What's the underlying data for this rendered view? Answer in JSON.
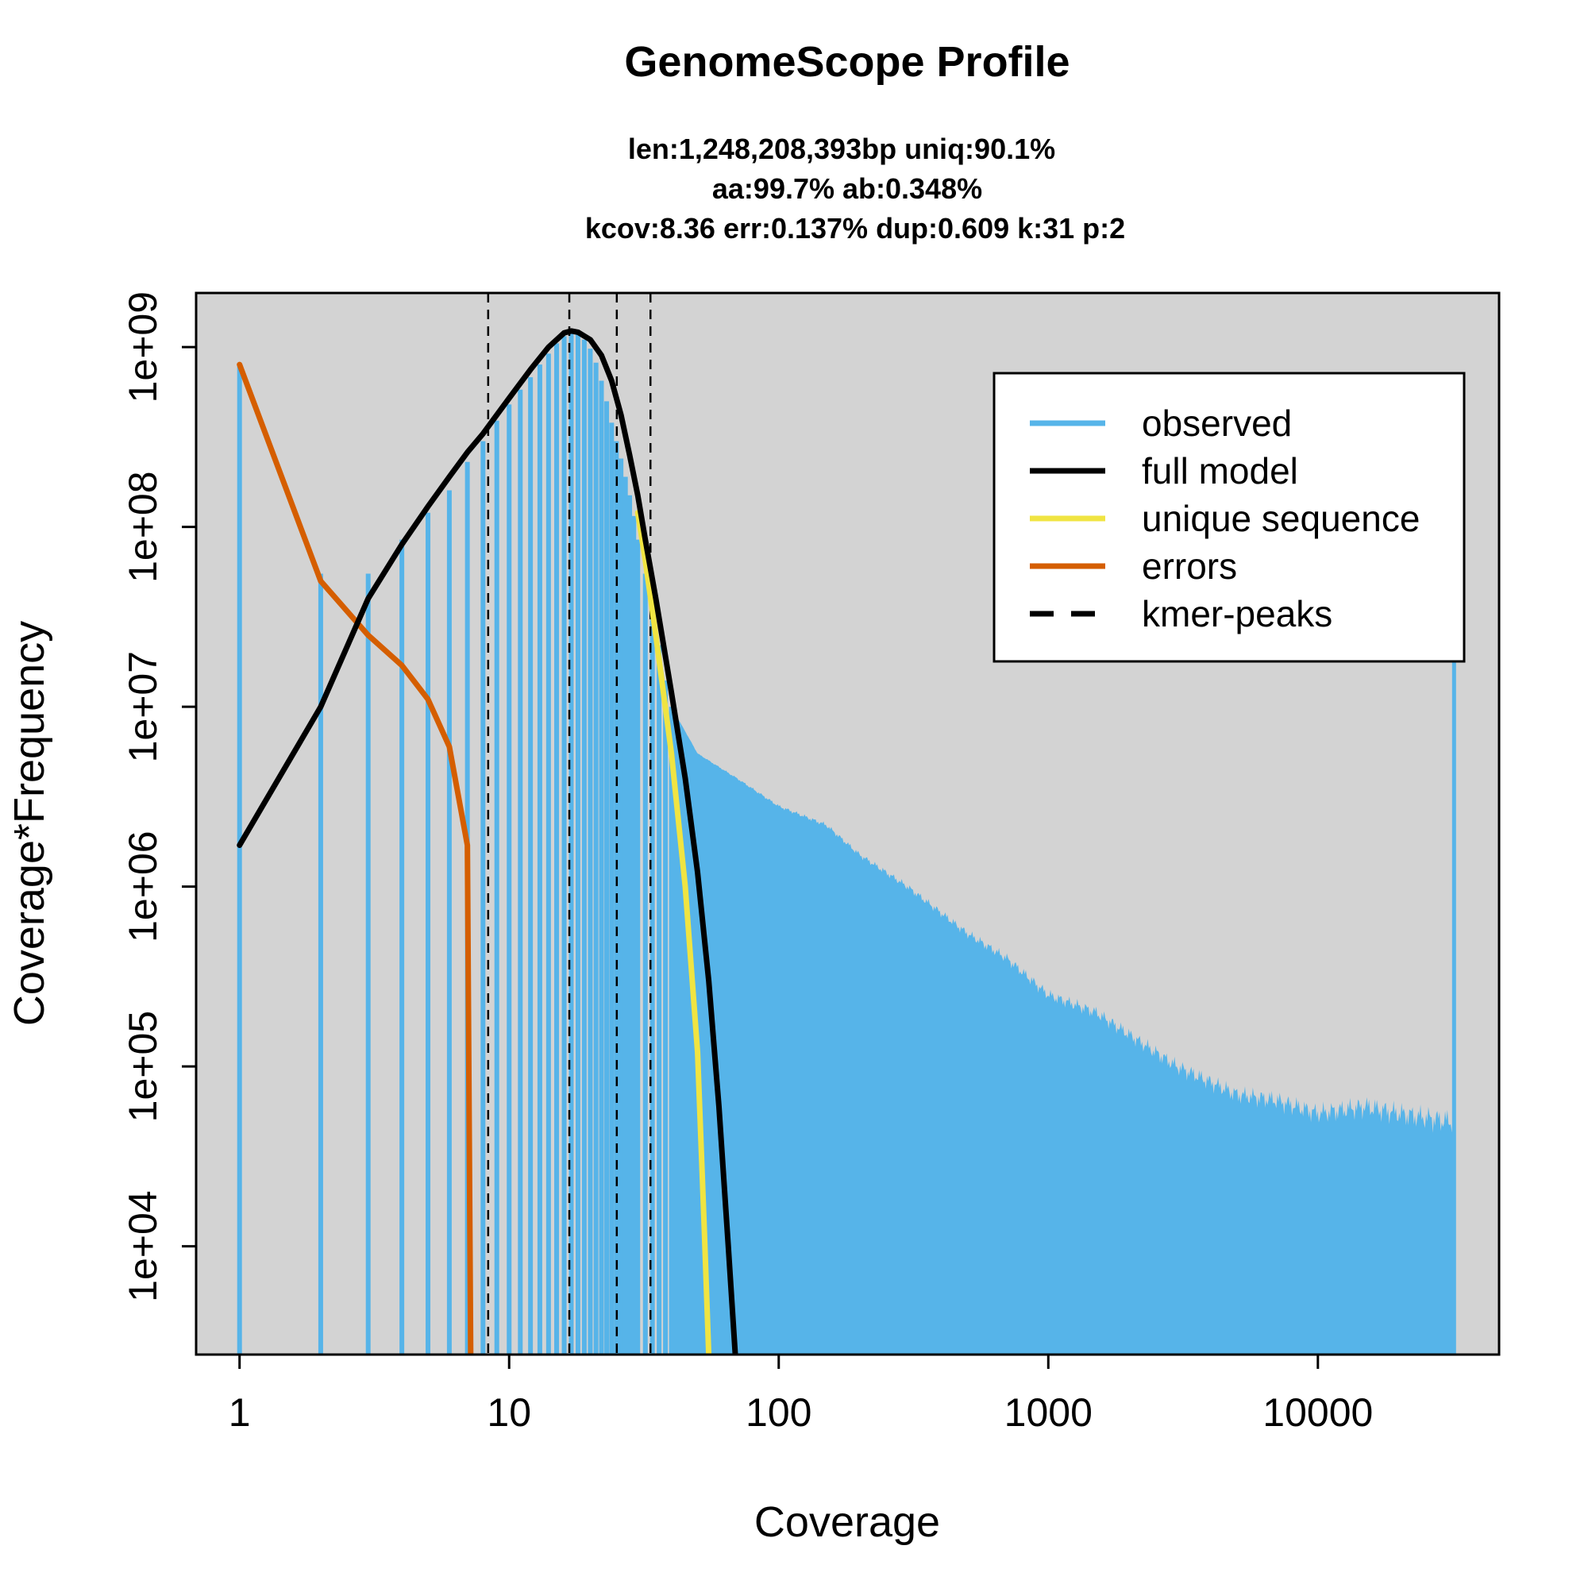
{
  "chart_data": {
    "type": "bar",
    "title": "GenomeScope Profile",
    "subtitle_lines": [
      "len:1,248,208,393bp uniq:90.1%",
      "aa:99.7% ab:0.348%",
      "kcov:8.36 err:0.137%  dup:0.609  k:31 p:2"
    ],
    "xlabel": "Coverage",
    "ylabel": "Coverage*Frequency",
    "x_scale": "log",
    "y_scale": "log",
    "xlim": [
      0.69,
      47000
    ],
    "ylim": [
      2500,
      2000000000
    ],
    "x_ticks": [
      {
        "value": 1,
        "label": "1"
      },
      {
        "value": 10,
        "label": "10"
      },
      {
        "value": 100,
        "label": "100"
      },
      {
        "value": 1000,
        "label": "1000"
      },
      {
        "value": 10000,
        "label": "10000"
      }
    ],
    "y_ticks": [
      {
        "value": 10000,
        "label": "1e+04"
      },
      {
        "value": 100000,
        "label": "1e+05"
      },
      {
        "value": 1000000,
        "label": "1e+06"
      },
      {
        "value": 10000000,
        "label": "1e+07"
      },
      {
        "value": 100000000,
        "label": "1e+08"
      },
      {
        "value": 1000000000,
        "label": "1e+09"
      }
    ],
    "plot_background": "#d3d3d3",
    "legend": {
      "position": "top-right",
      "entries": [
        {
          "label": "observed",
          "color": "#56b4e9",
          "style": "solid"
        },
        {
          "label": "full model",
          "color": "#000000",
          "style": "solid"
        },
        {
          "label": "unique sequence",
          "color": "#f0e442",
          "style": "solid"
        },
        {
          "label": "errors",
          "color": "#d55e00",
          "style": "solid"
        },
        {
          "label": "kmer-peaks",
          "color": "#000000",
          "style": "dashed"
        }
      ]
    },
    "observed": {
      "name": "observed",
      "color": "#56b4e9",
      "explicit": [
        [
          1,
          800000000
        ],
        [
          2,
          55000000
        ],
        [
          3,
          55000000
        ],
        [
          4,
          85000000
        ],
        [
          5,
          120000000
        ],
        [
          6,
          160000000
        ],
        [
          7,
          230000000
        ],
        [
          8,
          300000000
        ],
        [
          9,
          390000000
        ],
        [
          10,
          480000000
        ],
        [
          11,
          580000000
        ],
        [
          12,
          680000000
        ],
        [
          13,
          800000000
        ],
        [
          14,
          920000000
        ],
        [
          15,
          1050000000
        ],
        [
          16,
          1150000000
        ],
        [
          17,
          1200000000
        ],
        [
          18,
          1180000000
        ],
        [
          19,
          1100000000
        ],
        [
          20,
          980000000
        ],
        [
          21,
          820000000
        ],
        [
          22,
          650000000
        ],
        [
          23,
          500000000
        ],
        [
          24,
          380000000
        ],
        [
          25,
          300000000
        ],
        [
          26,
          240000000
        ],
        [
          27,
          190000000
        ],
        [
          28,
          150000000
        ],
        [
          29,
          115000000
        ],
        [
          30,
          85000000
        ],
        [
          32,
          55000000
        ],
        [
          34,
          35000000
        ],
        [
          36,
          22000000
        ],
        [
          38,
          14000000
        ],
        [
          40,
          10000000
        ]
      ],
      "tail_anchors": [
        [
          40,
          10000000
        ],
        [
          50,
          5500000
        ],
        [
          70,
          4000000
        ],
        [
          100,
          2800000
        ],
        [
          150,
          2200000
        ],
        [
          200,
          1500000
        ],
        [
          300,
          1000000
        ],
        [
          500,
          550000
        ],
        [
          700,
          400000
        ],
        [
          1000,
          250000
        ],
        [
          1500,
          200000
        ],
        [
          2000,
          150000
        ],
        [
          3000,
          100000
        ],
        [
          5000,
          70000
        ],
        [
          7000,
          65000
        ],
        [
          10000,
          55000
        ],
        [
          15000,
          60000
        ],
        [
          20000,
          55000
        ],
        [
          30000,
          50000
        ]
      ],
      "last_spike": [
        32000,
        18000000
      ]
    },
    "full_model": {
      "name": "full model",
      "color": "#000000",
      "points": [
        [
          1,
          1700000
        ],
        [
          2,
          10000000
        ],
        [
          3,
          40000000
        ],
        [
          4,
          80000000
        ],
        [
          5,
          130000000
        ],
        [
          6,
          190000000
        ],
        [
          7,
          260000000
        ],
        [
          8,
          330000000
        ],
        [
          9,
          420000000
        ],
        [
          10,
          520000000
        ],
        [
          12,
          750000000
        ],
        [
          14,
          1000000000
        ],
        [
          16,
          1200000000
        ],
        [
          17,
          1230000000
        ],
        [
          18,
          1210000000
        ],
        [
          20,
          1100000000
        ],
        [
          22,
          900000000
        ],
        [
          24,
          650000000
        ],
        [
          26,
          420000000
        ],
        [
          28,
          250000000
        ],
        [
          30,
          150000000
        ],
        [
          32,
          85000000
        ],
        [
          35,
          40000000
        ],
        [
          40,
          12000000
        ],
        [
          45,
          4000000
        ],
        [
          50,
          1200000
        ],
        [
          55,
          300000
        ],
        [
          60,
          60000
        ],
        [
          65,
          10000
        ],
        [
          69,
          2500
        ]
      ]
    },
    "unique_sequence": {
      "name": "unique sequence",
      "color": "#f0e442",
      "points": [
        [
          30,
          120000000
        ],
        [
          32,
          65000000
        ],
        [
          35,
          25000000
        ],
        [
          40,
          5500000
        ],
        [
          45,
          1000000
        ],
        [
          50,
          120000
        ],
        [
          53,
          12000
        ],
        [
          55,
          2500
        ]
      ]
    },
    "errors": {
      "name": "errors",
      "color": "#d55e00",
      "points": [
        [
          1,
          800000000
        ],
        [
          2,
          50000000
        ],
        [
          3,
          25000000
        ],
        [
          4,
          17000000
        ],
        [
          5,
          11000000
        ],
        [
          6,
          6000000
        ],
        [
          7,
          1700000
        ],
        [
          7.2,
          2500
        ]
      ]
    },
    "kmer_peaks": [
      8.36,
      16.72,
      25.08,
      33.44
    ]
  }
}
